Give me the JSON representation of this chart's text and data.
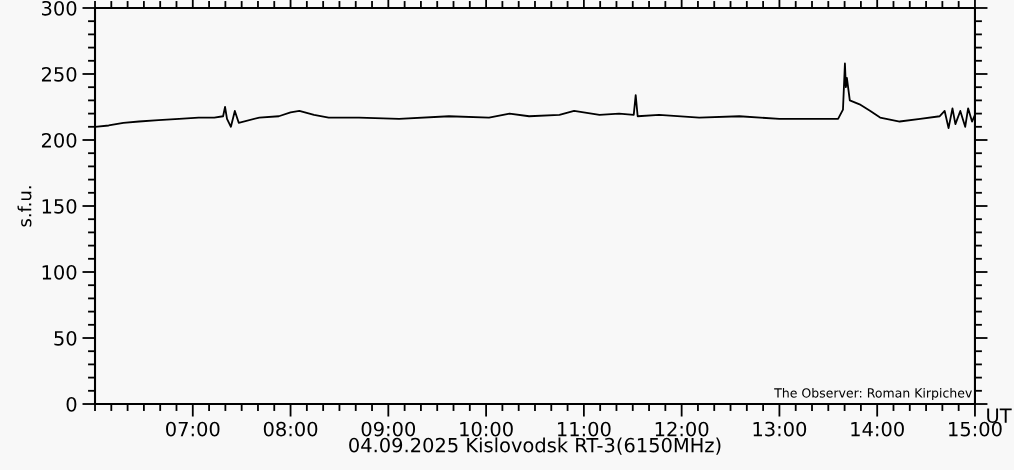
{
  "chart_data": {
    "type": "line",
    "xlabel": "04.09.2025 Kislovodsk RT-3(6150MHz)",
    "ylabel": "s.f.u.",
    "annotations": [
      "The Observer: Roman Kirpichev",
      "UT"
    ],
    "series": [
      {
        "color": "#000000",
        "x": [
          6.0,
          6.14,
          6.29,
          6.45,
          6.65,
          6.86,
          7.06,
          7.22,
          7.31,
          7.33,
          7.35,
          7.39,
          7.43,
          7.47,
          7.68,
          7.88,
          8.0,
          8.09,
          8.24,
          8.39,
          8.7,
          9.11,
          9.62,
          10.03,
          10.24,
          10.44,
          10.75,
          10.9,
          11.16,
          11.36,
          11.51,
          11.53,
          11.55,
          11.77,
          12.18,
          12.59,
          13.0,
          13.41,
          13.6,
          13.65,
          13.67,
          13.68,
          13.69,
          13.72,
          13.82,
          13.93,
          14.03,
          14.23,
          14.44,
          14.64,
          14.69,
          14.73,
          14.77,
          14.8,
          14.85,
          14.9,
          14.93,
          14.97,
          15.0
        ],
        "values": [
          210,
          211,
          213,
          214,
          215,
          216,
          217,
          217,
          218,
          225,
          216,
          210,
          222,
          213,
          217,
          218,
          221,
          222,
          219,
          217,
          217,
          216,
          218,
          217,
          220,
          218,
          219,
          222,
          219,
          220,
          219,
          234,
          218,
          219,
          217,
          218,
          216,
          216,
          216,
          223,
          258,
          240,
          247,
          230,
          227,
          222,
          217,
          214,
          216,
          218,
          222,
          209,
          224,
          212,
          222,
          210,
          224,
          214,
          219
        ]
      }
    ],
    "xlim": [
      6,
      15
    ],
    "ylim": [
      0,
      300
    ],
    "xticks": [
      {
        "value": 7,
        "label": "07:00"
      },
      {
        "value": 8,
        "label": "08:00"
      },
      {
        "value": 9,
        "label": "09:00"
      },
      {
        "value": 10,
        "label": "10:00"
      },
      {
        "value": 11,
        "label": "11:00"
      },
      {
        "value": 12,
        "label": "12:00"
      },
      {
        "value": 13,
        "label": "13:00"
      },
      {
        "value": 14,
        "label": "14:00"
      },
      {
        "value": 15,
        "label": "15:00"
      }
    ],
    "yticks": [
      0,
      50,
      100,
      150,
      200,
      250,
      300
    ],
    "grid": false,
    "legend": false,
    "marker": "none",
    "line_style": "solid"
  }
}
